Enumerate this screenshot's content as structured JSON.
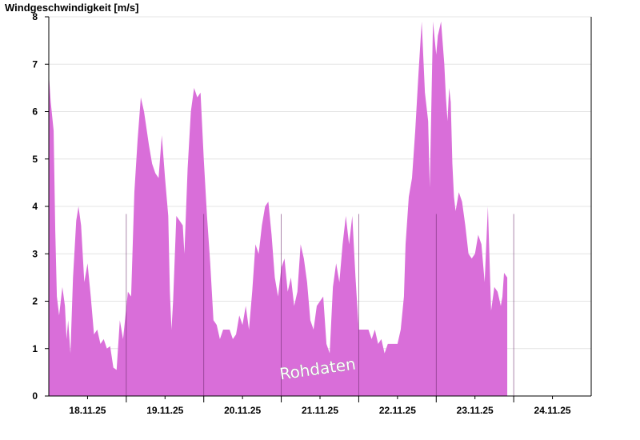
{
  "chart_data": {
    "type": "area",
    "title": "Windgeschwindigkeit [m/s]",
    "xlabel": "",
    "ylabel": "",
    "ylim": [
      0,
      8
    ],
    "yticks": [
      0,
      1,
      2,
      3,
      4,
      5,
      6,
      7,
      8
    ],
    "grid": true,
    "x_unit": "hours since 17.11.25 12:00",
    "xlim": [
      0,
      168
    ],
    "day_boundaries": [
      24,
      48,
      72,
      96,
      120,
      144
    ],
    "xtick_labels": [
      {
        "label": "18.11.25",
        "x": 12
      },
      {
        "label": "19.11.25",
        "x": 36
      },
      {
        "label": "20.11.25",
        "x": 60
      },
      {
        "label": "21.11.25",
        "x": 84
      },
      {
        "label": "22.11.25",
        "x": 108
      },
      {
        "label": "23.11.25",
        "x": 132
      },
      {
        "label": "24.11.25",
        "x": 156
      }
    ],
    "annotation": "Rohdaten",
    "fill_color": "#d96ed9",
    "series": [
      {
        "values": [
          [
            0,
            6.8
          ],
          [
            0.6,
            6.2
          ],
          [
            1.5,
            5.6
          ],
          [
            2.0,
            3.5
          ],
          [
            2.5,
            2.1
          ],
          [
            3.2,
            1.7
          ],
          [
            3.7,
            2.0
          ],
          [
            4.2,
            2.3
          ],
          [
            5.0,
            1.9
          ],
          [
            5.5,
            1.2
          ],
          [
            6.0,
            1.6
          ],
          [
            6.7,
            0.9
          ],
          [
            7.5,
            2.5
          ],
          [
            8.5,
            3.7
          ],
          [
            9.2,
            4.0
          ],
          [
            10.0,
            3.6
          ],
          [
            11.0,
            2.4
          ],
          [
            12.0,
            2.8
          ],
          [
            13.0,
            2.1
          ],
          [
            14.0,
            1.3
          ],
          [
            15.0,
            1.4
          ],
          [
            16.0,
            1.1
          ],
          [
            17.0,
            1.2
          ],
          [
            18.0,
            1.0
          ],
          [
            19.0,
            1.05
          ],
          [
            20.0,
            0.6
          ],
          [
            21.0,
            0.55
          ],
          [
            22.0,
            1.6
          ],
          [
            23.0,
            1.2
          ],
          [
            24.5,
            2.2
          ],
          [
            25.5,
            2.1
          ],
          [
            26.5,
            4.3
          ],
          [
            27.5,
            5.4
          ],
          [
            28.5,
            6.3
          ],
          [
            29.5,
            6.0
          ],
          [
            31.0,
            5.3
          ],
          [
            32.0,
            4.9
          ],
          [
            33.0,
            4.7
          ],
          [
            34.0,
            4.6
          ],
          [
            35.0,
            5.5
          ],
          [
            36.0,
            4.6
          ],
          [
            37.0,
            3.8
          ],
          [
            37.5,
            2.2
          ],
          [
            38.0,
            1.4
          ],
          [
            38.5,
            2.0
          ],
          [
            39.5,
            3.8
          ],
          [
            40.5,
            3.7
          ],
          [
            41.5,
            3.6
          ],
          [
            42.0,
            3.0
          ],
          [
            43.0,
            4.8
          ],
          [
            44.0,
            6.0
          ],
          [
            45.0,
            6.5
          ],
          [
            46.0,
            6.3
          ],
          [
            47.0,
            6.4
          ],
          [
            48.0,
            5.0
          ],
          [
            49.0,
            3.8
          ],
          [
            50.0,
            2.8
          ],
          [
            51.0,
            1.6
          ],
          [
            52.0,
            1.5
          ],
          [
            53.0,
            1.2
          ],
          [
            54.0,
            1.4
          ],
          [
            56.0,
            1.4
          ],
          [
            57.0,
            1.2
          ],
          [
            58.0,
            1.3
          ],
          [
            59.0,
            1.7
          ],
          [
            60.0,
            1.5
          ],
          [
            61.0,
            1.9
          ],
          [
            62.0,
            1.4
          ],
          [
            63.0,
            2.2
          ],
          [
            64.0,
            3.2
          ],
          [
            65.0,
            3.0
          ],
          [
            66.0,
            3.6
          ],
          [
            67.0,
            4.0
          ],
          [
            68.0,
            4.1
          ],
          [
            69.0,
            3.4
          ],
          [
            70.0,
            2.5
          ],
          [
            71.0,
            2.1
          ],
          [
            72.0,
            2.7
          ],
          [
            73.0,
            2.9
          ],
          [
            74.0,
            2.2
          ],
          [
            75.0,
            2.5
          ],
          [
            76.0,
            1.9
          ],
          [
            77.0,
            2.2
          ],
          [
            78.0,
            3.2
          ],
          [
            79.0,
            2.9
          ],
          [
            80.0,
            2.4
          ],
          [
            81.0,
            1.6
          ],
          [
            82.0,
            1.4
          ],
          [
            83.0,
            1.9
          ],
          [
            84.0,
            2.0
          ],
          [
            85.0,
            2.1
          ],
          [
            86.0,
            1.1
          ],
          [
            87.0,
            0.9
          ],
          [
            88.0,
            2.3
          ],
          [
            89.0,
            2.8
          ],
          [
            90.0,
            2.4
          ],
          [
            91.0,
            3.2
          ],
          [
            92.0,
            3.8
          ],
          [
            93.0,
            3.2
          ],
          [
            94.0,
            3.8
          ],
          [
            95.0,
            2.5
          ],
          [
            96.0,
            1.4
          ],
          [
            99.0,
            1.4
          ],
          [
            100.0,
            1.2
          ],
          [
            101.0,
            1.4
          ],
          [
            102.0,
            1.1
          ],
          [
            103.0,
            1.2
          ],
          [
            104.0,
            0.9
          ],
          [
            105.0,
            1.1
          ],
          [
            108.0,
            1.1
          ],
          [
            109.0,
            1.4
          ],
          [
            110.0,
            2.1
          ],
          [
            110.5,
            3.2
          ],
          [
            111.5,
            4.2
          ],
          [
            112.5,
            4.6
          ],
          [
            113.5,
            5.6
          ],
          [
            114.5,
            6.8
          ],
          [
            115.5,
            7.9
          ],
          [
            116.5,
            6.4
          ],
          [
            117.5,
            5.8
          ],
          [
            118.0,
            4.4
          ],
          [
            119.0,
            7.9
          ],
          [
            120.0,
            7.2
          ],
          [
            120.5,
            7.6
          ],
          [
            121.5,
            7.9
          ],
          [
            122.5,
            7.0
          ],
          [
            123.0,
            6.3
          ],
          [
            123.5,
            5.8
          ],
          [
            124.0,
            6.5
          ],
          [
            124.5,
            6.2
          ],
          [
            125.0,
            4.9
          ],
          [
            125.5,
            4.2
          ],
          [
            126.0,
            3.9
          ],
          [
            127.0,
            4.3
          ],
          [
            128.0,
            4.1
          ],
          [
            129.0,
            3.6
          ],
          [
            130.0,
            3.0
          ],
          [
            131.0,
            2.9
          ],
          [
            132.0,
            3.0
          ],
          [
            133.0,
            3.4
          ],
          [
            134.0,
            3.2
          ],
          [
            135.0,
            2.4
          ],
          [
            136.0,
            4.0
          ],
          [
            137.0,
            1.8
          ],
          [
            138.0,
            2.3
          ],
          [
            139.0,
            2.2
          ],
          [
            140.0,
            1.9
          ],
          [
            140.5,
            2.1
          ],
          [
            141.0,
            2.6
          ],
          [
            142.0,
            2.5
          ]
        ]
      }
    ]
  }
}
